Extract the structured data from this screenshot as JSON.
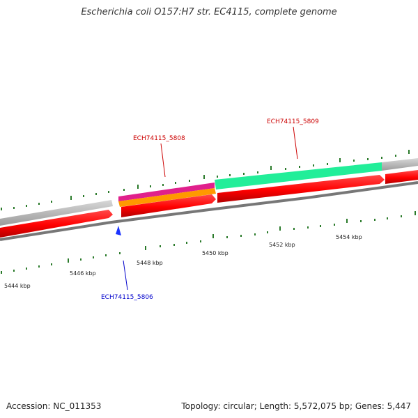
{
  "title": "Escherichia coli O157:H7 str. EC4115, complete genome",
  "footer": {
    "accession": "Accession: NC_011353",
    "summary": "Topology: circular; Length: 5,572,075 bp; Genes: 5,447"
  },
  "genes": {
    "g5808": "ECH74115_5808",
    "g5809": "ECH74115_5809",
    "g5806": "ECH74115_5806"
  },
  "ruler": {
    "k5444": "5444 kbp",
    "k5446": "5446 kbp",
    "k5448": "5448 kbp",
    "k5450": "5450 kbp",
    "k5452": "5452 kbp",
    "k5454": "5454 kbp"
  },
  "colors": {
    "forward_cds": "#ff0000",
    "reverse_cds": "#ff0000",
    "label_forward": "#cc0000",
    "label_reverse": "#0000cc",
    "pink": "#e0208c",
    "orange": "#ff9900",
    "teal": "#22ee99",
    "gray": "#bbbbbb",
    "tick": "#2a7a2a"
  }
}
